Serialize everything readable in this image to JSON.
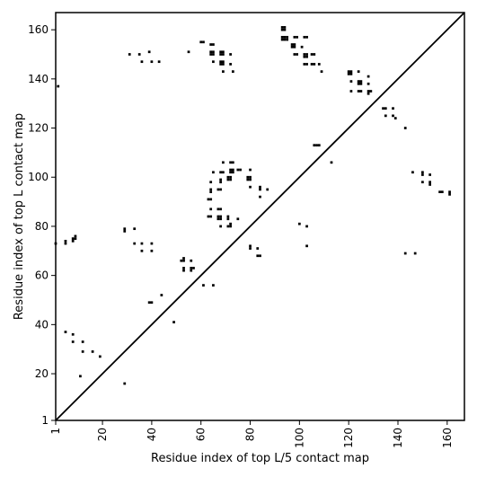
{
  "chart_data": {
    "type": "scatter",
    "title": "",
    "xlabel": "Residue index of top L/5 contact map",
    "ylabel": "Residue index of top L contact map",
    "xlim": [
      1,
      167
    ],
    "ylim": [
      1,
      167
    ],
    "xticks": [
      1,
      20,
      40,
      60,
      80,
      100,
      120,
      140,
      160
    ],
    "yticks": [
      1,
      20,
      40,
      60,
      80,
      100,
      120,
      140,
      160
    ],
    "diagonal": true,
    "grid": false,
    "marker_color": "#000000",
    "series": [
      {
        "points": [
          [
            2,
            137
          ],
          [
            31,
            150
          ],
          [
            35,
            150
          ],
          [
            39,
            151
          ],
          [
            36,
            147
          ],
          [
            40,
            147
          ],
          [
            43,
            147
          ],
          [
            55,
            151
          ],
          [
            60,
            155
          ],
          [
            61,
            155
          ],
          [
            64,
            154
          ],
          [
            65,
            154
          ],
          [
            64,
            151
          ],
          [
            65,
            151
          ],
          [
            64,
            150
          ],
          [
            65,
            150
          ],
          [
            68,
            151
          ],
          [
            69,
            151
          ],
          [
            68,
            150
          ],
          [
            69,
            150
          ],
          [
            72,
            150
          ],
          [
            65,
            147
          ],
          [
            68,
            147
          ],
          [
            69,
            147
          ],
          [
            68,
            146
          ],
          [
            69,
            146
          ],
          [
            72,
            146
          ],
          [
            69,
            143
          ],
          [
            73,
            143
          ],
          [
            93,
            161
          ],
          [
            94,
            161
          ],
          [
            93,
            160
          ],
          [
            94,
            160
          ],
          [
            93,
            157
          ],
          [
            94,
            157
          ],
          [
            95,
            157
          ],
          [
            93,
            156
          ],
          [
            94,
            156
          ],
          [
            95,
            156
          ],
          [
            98,
            157
          ],
          [
            99,
            157
          ],
          [
            102,
            157
          ],
          [
            103,
            157
          ],
          [
            97,
            154
          ],
          [
            98,
            154
          ],
          [
            97,
            153
          ],
          [
            98,
            153
          ],
          [
            101,
            153
          ],
          [
            98,
            150
          ],
          [
            99,
            150
          ],
          [
            102,
            150
          ],
          [
            103,
            150
          ],
          [
            102,
            149
          ],
          [
            103,
            149
          ],
          [
            105,
            150
          ],
          [
            106,
            150
          ],
          [
            102,
            146
          ],
          [
            103,
            146
          ],
          [
            105,
            146
          ],
          [
            106,
            146
          ],
          [
            108,
            146
          ],
          [
            109,
            143
          ],
          [
            120,
            143
          ],
          [
            121,
            143
          ],
          [
            124,
            143
          ],
          [
            120,
            142
          ],
          [
            121,
            142
          ],
          [
            121,
            139
          ],
          [
            124,
            139
          ],
          [
            125,
            139
          ],
          [
            128,
            141
          ],
          [
            124,
            138
          ],
          [
            125,
            138
          ],
          [
            128,
            138
          ],
          [
            121,
            135
          ],
          [
            124,
            135
          ],
          [
            125,
            135
          ],
          [
            128,
            135
          ],
          [
            129,
            135
          ],
          [
            128,
            134
          ],
          [
            134,
            128
          ],
          [
            135,
            128
          ],
          [
            138,
            128
          ],
          [
            135,
            125
          ],
          [
            138,
            125
          ],
          [
            139,
            124
          ],
          [
            143,
            120
          ],
          [
            106,
            113
          ],
          [
            107,
            113
          ],
          [
            108,
            113
          ],
          [
            113,
            106
          ],
          [
            146,
            102
          ],
          [
            150,
            102
          ],
          [
            150,
            101
          ],
          [
            153,
            101
          ],
          [
            150,
            98
          ],
          [
            153,
            98
          ],
          [
            153,
            97
          ],
          [
            157,
            94
          ],
          [
            158,
            94
          ],
          [
            161,
            94
          ],
          [
            161,
            93
          ],
          [
            143,
            69
          ],
          [
            147,
            69
          ],
          [
            69,
            106
          ],
          [
            72,
            106
          ],
          [
            73,
            106
          ],
          [
            65,
            102
          ],
          [
            68,
            102
          ],
          [
            69,
            102
          ],
          [
            72,
            103
          ],
          [
            73,
            103
          ],
          [
            75,
            103
          ],
          [
            76,
            103
          ],
          [
            80,
            103
          ],
          [
            72,
            102
          ],
          [
            73,
            102
          ],
          [
            71,
            100
          ],
          [
            72,
            100
          ],
          [
            71,
            99
          ],
          [
            72,
            99
          ],
          [
            79,
            100
          ],
          [
            80,
            100
          ],
          [
            79,
            99
          ],
          [
            80,
            99
          ],
          [
            64,
            98
          ],
          [
            68,
            99
          ],
          [
            68,
            98
          ],
          [
            64,
            95
          ],
          [
            67,
            95
          ],
          [
            68,
            95
          ],
          [
            64,
            94
          ],
          [
            80,
            96
          ],
          [
            84,
            96
          ],
          [
            84,
            95
          ],
          [
            87,
            95
          ],
          [
            84,
            92
          ],
          [
            63,
            91
          ],
          [
            64,
            91
          ],
          [
            64,
            87
          ],
          [
            67,
            87
          ],
          [
            68,
            87
          ],
          [
            63,
            84
          ],
          [
            64,
            84
          ],
          [
            67,
            84
          ],
          [
            68,
            84
          ],
          [
            67,
            83
          ],
          [
            68,
            83
          ],
          [
            71,
            84
          ],
          [
            71,
            83
          ],
          [
            75,
            83
          ],
          [
            68,
            80
          ],
          [
            71,
            80
          ],
          [
            72,
            80
          ],
          [
            72,
            81
          ],
          [
            80,
            72
          ],
          [
            80,
            71
          ],
          [
            83,
            71
          ],
          [
            83,
            68
          ],
          [
            84,
            68
          ],
          [
            100,
            81
          ],
          [
            103,
            80
          ],
          [
            103,
            72
          ],
          [
            1,
            73
          ],
          [
            5,
            74
          ],
          [
            5,
            73
          ],
          [
            8,
            75
          ],
          [
            8,
            74
          ],
          [
            9,
            76
          ],
          [
            9,
            75
          ],
          [
            29,
            79
          ],
          [
            29,
            78
          ],
          [
            33,
            79
          ],
          [
            33,
            73
          ],
          [
            36,
            73
          ],
          [
            40,
            73
          ],
          [
            36,
            70
          ],
          [
            40,
            70
          ],
          [
            39,
            49
          ],
          [
            40,
            49
          ],
          [
            44,
            52
          ],
          [
            49,
            41
          ],
          [
            52,
            66
          ],
          [
            53,
            67
          ],
          [
            53,
            66
          ],
          [
            56,
            66
          ],
          [
            53,
            63
          ],
          [
            53,
            62
          ],
          [
            56,
            63
          ],
          [
            57,
            63
          ],
          [
            56,
            62
          ],
          [
            61,
            56
          ],
          [
            65,
            56
          ],
          [
            5,
            37
          ],
          [
            8,
            36
          ],
          [
            8,
            33
          ],
          [
            12,
            33
          ],
          [
            12,
            29
          ],
          [
            16,
            29
          ],
          [
            19,
            27
          ],
          [
            11,
            19
          ],
          [
            29,
            16
          ]
        ]
      }
    ]
  }
}
